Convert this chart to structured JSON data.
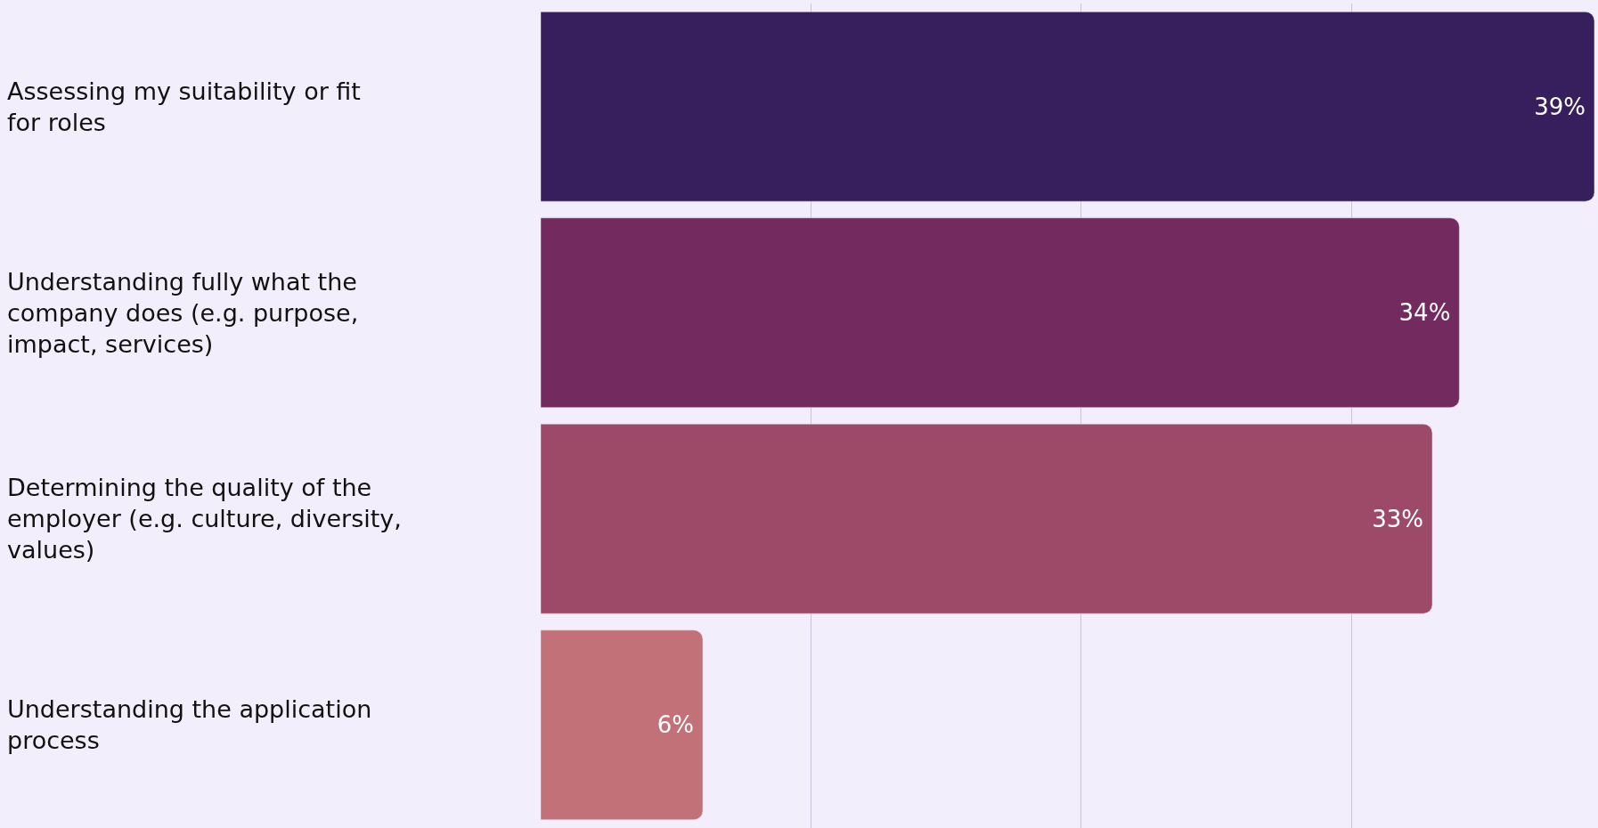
{
  "chart_data": {
    "type": "bar",
    "orientation": "horizontal",
    "categories": [
      "Assessing my suitability or fit for roles",
      "Understanding fully what the company does (e.g. purpose, impact, services)",
      "Determining the quality of the employer (e.g. culture, diversity, values)",
      "Understanding the application process"
    ],
    "values": [
      39,
      34,
      33,
      6
    ],
    "colors": [
      "#371f5e",
      "#732a5f",
      "#9d4a69",
      "#c37179"
    ],
    "value_labels": [
      "39%",
      "34%",
      "33%",
      "6%"
    ],
    "xlim": [
      0,
      39
    ],
    "xticks": [
      {
        "value": 10,
        "label": null
      },
      {
        "value": 20,
        "label": null
      },
      {
        "value": 30,
        "label": null
      }
    ],
    "grid": "x",
    "legend": false
  }
}
